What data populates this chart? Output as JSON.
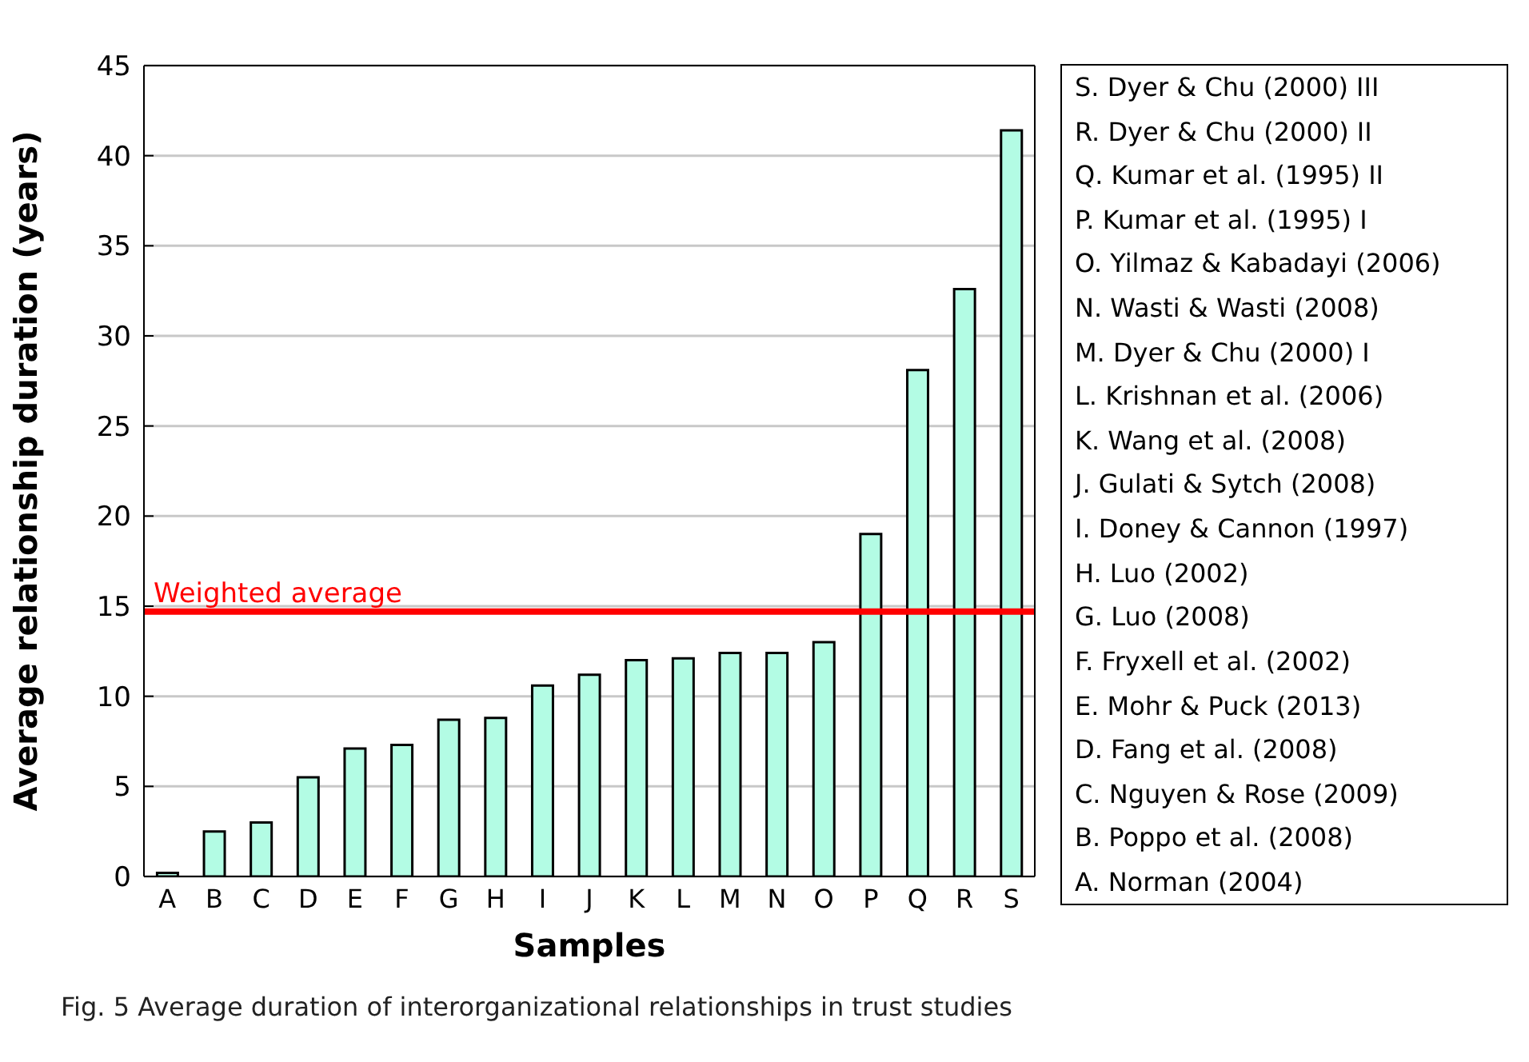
{
  "chart_data": {
    "type": "bar",
    "xlabel": "Samples",
    "ylabel": "Average relationship duration (years)",
    "categories": [
      "A",
      "B",
      "C",
      "D",
      "E",
      "F",
      "G",
      "H",
      "I",
      "J",
      "K",
      "L",
      "M",
      "N",
      "O",
      "P",
      "Q",
      "R",
      "S"
    ],
    "values": [
      0.2,
      2.5,
      3.0,
      5.5,
      7.1,
      7.3,
      8.7,
      8.8,
      10.6,
      11.2,
      12.0,
      12.1,
      12.4,
      12.4,
      13.0,
      19.0,
      28.1,
      32.6,
      41.4
    ],
    "color": "#b3fce4",
    "ylim": [
      0,
      45
    ],
    "yticks": [
      0,
      5,
      10,
      15,
      20,
      25,
      30,
      35,
      40,
      45
    ],
    "grid": "y",
    "ref_lines": [
      {
        "axis": "y",
        "value": 14.7,
        "label": "Weighted average",
        "color": "#ff0000"
      }
    ],
    "annotations": [
      "S. Dyer & Chu (2000) III",
      "R. Dyer & Chu (2000) II",
      "Q. Kumar et al. (1995) II",
      "P. Kumar et al. (1995) I",
      "O. Yilmaz & Kabadayi (2006)",
      "N. Wasti & Wasti (2008)",
      "M. Dyer & Chu (2000) I",
      "L. Krishnan et al. (2006)",
      "K. Wang et al. (2008)",
      "J. Gulati & Sytch (2008)",
      "I. Doney & Cannon (1997)",
      "H. Luo (2002)",
      "G. Luo (2008)",
      "F. Fryxell et al. (2002)",
      "E. Mohr & Puck (2013)",
      "D. Fang et al. (2008)",
      "C. Nguyen & Rose (2009)",
      "B. Poppo et al. (2008)",
      "A. Norman (2004)",
      "Fig. 5 Average duration of interorganizational relationships in trust studies"
    ]
  }
}
